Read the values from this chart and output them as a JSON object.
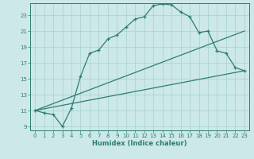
{
  "title": "",
  "xlabel": "Humidex (Indice chaleur)",
  "bg_color": "#cce8e8",
  "grid_color": "#b0d8d8",
  "line_color": "#2e7d72",
  "xlim": [
    -0.5,
    23.5
  ],
  "ylim": [
    8.5,
    24.5
  ],
  "yticks": [
    9,
    11,
    13,
    15,
    17,
    19,
    21,
    23
  ],
  "xticks": [
    0,
    1,
    2,
    3,
    4,
    5,
    6,
    7,
    8,
    9,
    10,
    11,
    12,
    13,
    14,
    15,
    16,
    17,
    18,
    19,
    20,
    21,
    22,
    23
  ],
  "curve1_x": [
    0,
    1,
    2,
    3,
    4,
    5,
    6,
    7,
    8,
    9,
    10,
    11,
    12,
    13,
    14,
    15,
    16,
    17,
    18,
    19,
    20,
    21,
    22,
    23
  ],
  "curve1_y": [
    11.0,
    10.7,
    10.5,
    9.0,
    11.3,
    15.3,
    18.2,
    18.6,
    20.0,
    20.5,
    21.5,
    22.5,
    22.8,
    24.2,
    24.4,
    24.3,
    23.4,
    22.8,
    20.8,
    21.0,
    18.5,
    18.2,
    16.4,
    16.0
  ],
  "curve2_x": [
    0,
    23
  ],
  "curve2_y": [
    11.0,
    21.0
  ],
  "curve3_x": [
    0,
    23
  ],
  "curve3_y": [
    11.0,
    16.0
  ]
}
